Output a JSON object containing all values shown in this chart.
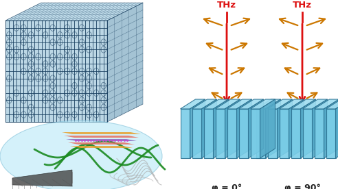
{
  "background_color": "#ffffff",
  "fig_width": 4.92,
  "fig_height": 2.76,
  "dpi": 100,
  "thz_label_color": "#dd1111",
  "thz_font_size": 9.5,
  "arrow_color": "#cc7700",
  "slab_face_color": "#7bcee8",
  "slab_top_color": "#a0ddf0",
  "slab_right_color": "#55aac8",
  "slab_edge_color": "#2a7090",
  "phi_label_0": "φ = 0°",
  "phi_label_90": "φ = 90°",
  "phi_font_size": 9,
  "num_slabs": 7,
  "cube_face_col": "#7ab0cc",
  "cube_edge_col": "#1a4060",
  "cube_top_col": "#9ac8e0",
  "cube_right_col": "#4a88aa",
  "inset_bg": "#b8e8f8",
  "cnt_color": "#303030",
  "green_fiber_color": "#1a8a20",
  "sheet_colors": [
    "#e8a030",
    "#e87060",
    "#8868c0",
    "#e87060",
    "#e8a030"
  ],
  "white_fiber_color": "#aaaaaa"
}
